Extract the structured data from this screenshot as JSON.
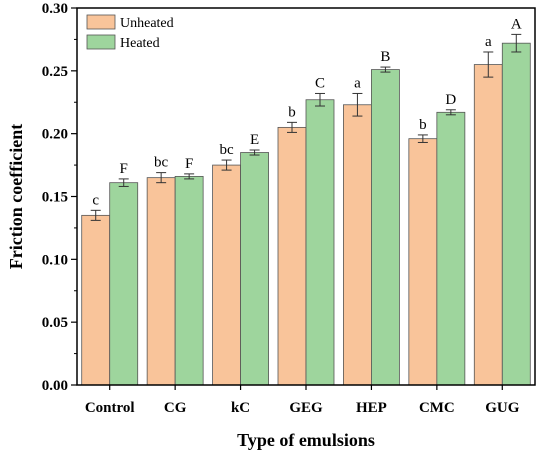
{
  "chart_data": {
    "type": "bar",
    "xlabel": "Type of emulsions",
    "ylabel": "Friction coefficient",
    "ylim": [
      0,
      0.3
    ],
    "yticks": [
      "0.00",
      "0.05",
      "0.10",
      "0.15",
      "0.20",
      "0.25",
      "0.30"
    ],
    "categories": [
      "Control",
      "CG",
      "kC",
      "GEG",
      "HEP",
      "CMC",
      "GUG"
    ],
    "legend_position": "top-left",
    "grid": false,
    "series": [
      {
        "name": "Unheated",
        "color": "#f9c49a",
        "values": [
          0.135,
          0.165,
          0.175,
          0.205,
          0.223,
          0.196,
          0.255
        ],
        "errors": [
          0.004,
          0.004,
          0.004,
          0.004,
          0.009,
          0.003,
          0.01
        ],
        "labels": [
          "c",
          "bc",
          "bc",
          "b",
          "a",
          "b",
          "a"
        ]
      },
      {
        "name": "Heated",
        "color": "#9ed59d",
        "values": [
          0.161,
          0.166,
          0.185,
          0.227,
          0.251,
          0.217,
          0.272
        ],
        "errors": [
          0.003,
          0.002,
          0.002,
          0.005,
          0.002,
          0.002,
          0.007
        ],
        "labels": [
          "F",
          "F",
          "E",
          "C",
          "B",
          "D",
          "A"
        ]
      }
    ]
  }
}
